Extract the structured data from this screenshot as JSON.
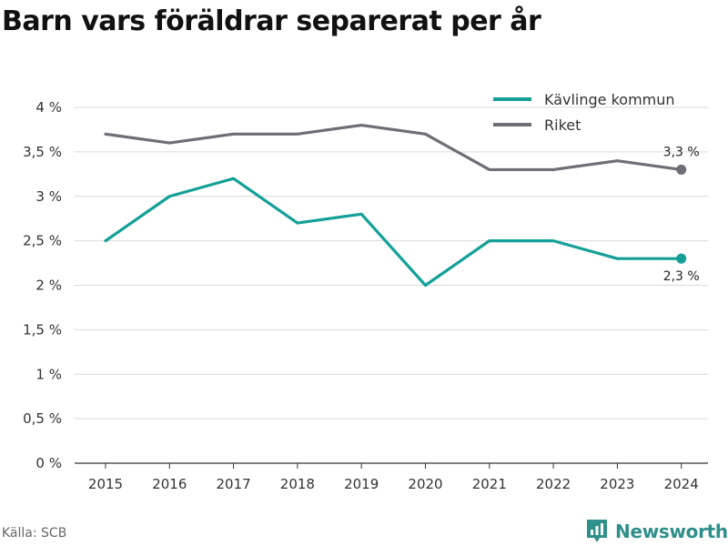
{
  "title": "Barn vars föräldrar separerat per år",
  "source": "Källa: SCB",
  "brand": "Newsworthy",
  "chart_data": {
    "type": "line",
    "x": [
      "2015",
      "2016",
      "2017",
      "2018",
      "2019",
      "2020",
      "2021",
      "2022",
      "2023",
      "2024"
    ],
    "series": [
      {
        "name": "Kävlinge kommun",
        "color": "#14a098",
        "values": [
          2.5,
          3.0,
          3.2,
          2.7,
          2.8,
          2.0,
          2.5,
          2.5,
          2.3,
          2.3
        ],
        "end_label": "2,3 %"
      },
      {
        "name": "Riket",
        "color": "#6e6e76",
        "values": [
          3.7,
          3.6,
          3.7,
          3.7,
          3.8,
          3.7,
          3.3,
          3.3,
          3.4,
          3.3
        ],
        "end_label": "3,3 %"
      }
    ],
    "ylim": [
      0,
      4
    ],
    "yticks": [
      0,
      0.5,
      1,
      1.5,
      2,
      2.5,
      3,
      3.5,
      4
    ],
    "ytick_labels": [
      "0 %",
      "0,5 %",
      "1 %",
      "1,5 %",
      "2 %",
      "2,5 %",
      "3 %",
      "3,5 %",
      "4 %"
    ],
    "grid": true,
    "legend": "top-right"
  }
}
